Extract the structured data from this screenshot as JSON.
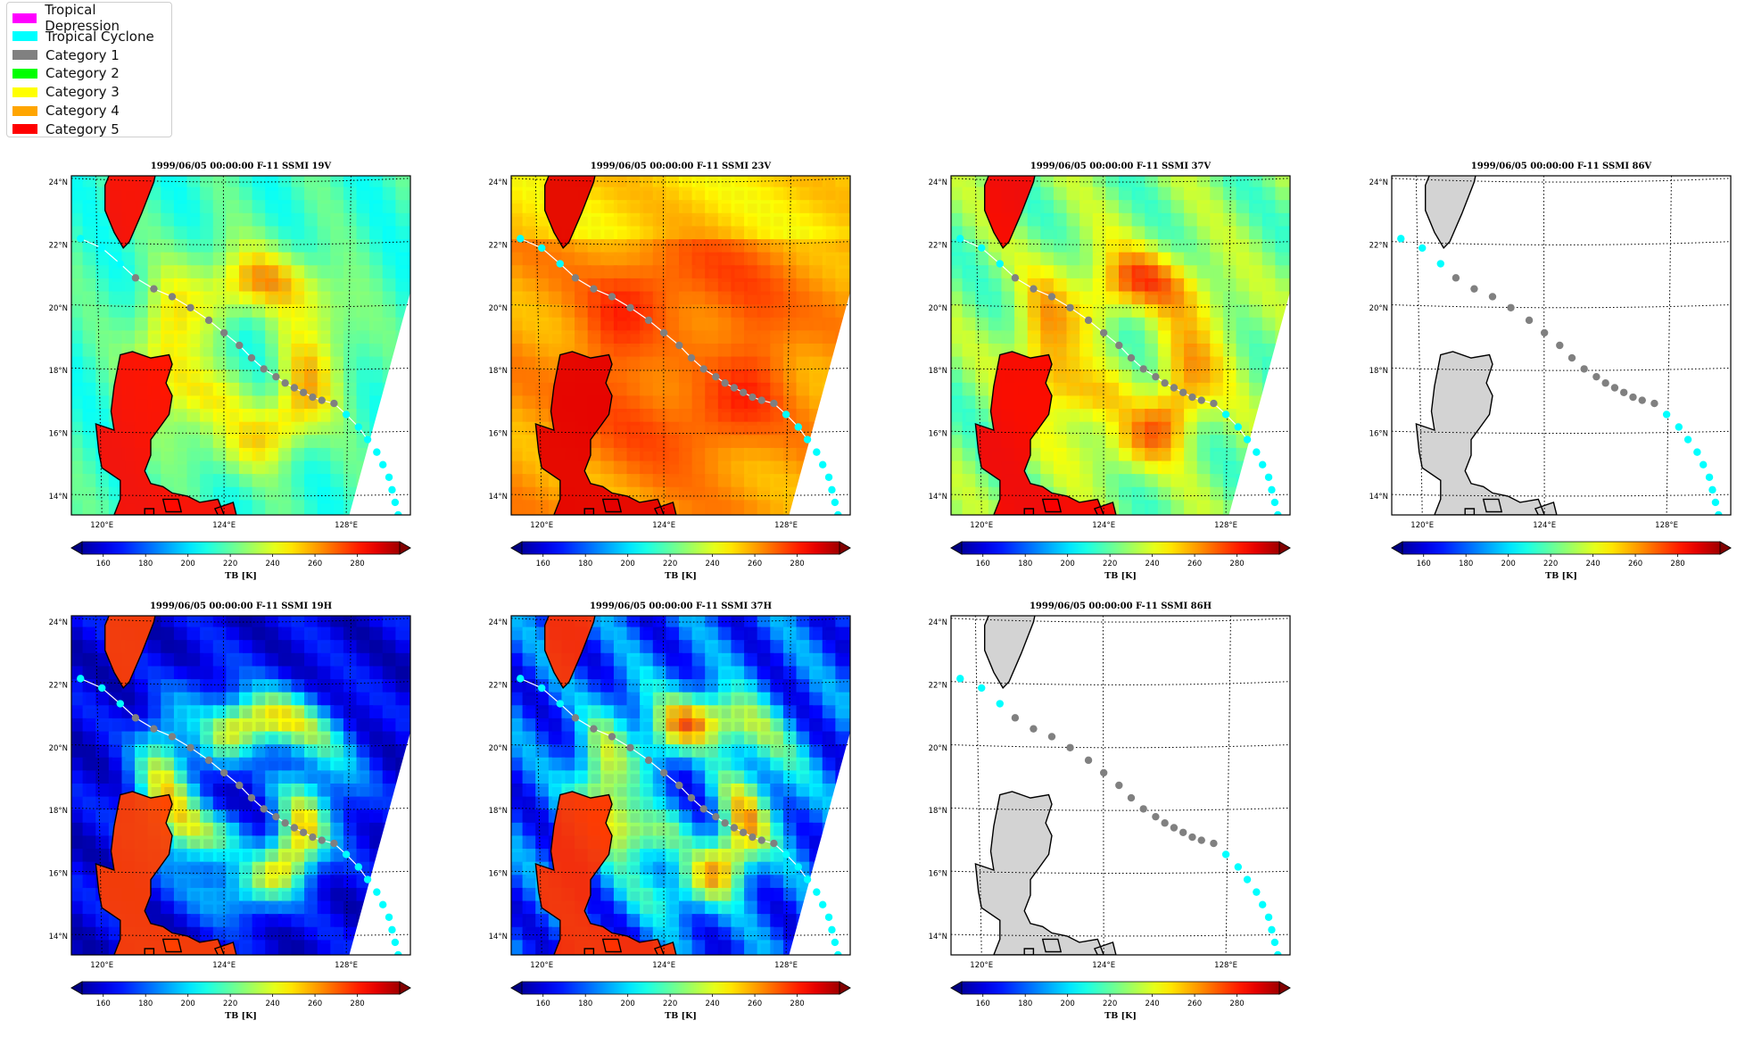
{
  "legend": {
    "items": [
      {
        "label": "Tropical Depression",
        "color": "#ff00ff"
      },
      {
        "label": "Tropical Cyclone",
        "color": "#00ffff"
      },
      {
        "label": "Category 1",
        "color": "#808080"
      },
      {
        "label": "Category 2",
        "color": "#00ff00"
      },
      {
        "label": "Category 3",
        "color": "#ffff00"
      },
      {
        "label": "Category 4",
        "color": "#ffa500"
      },
      {
        "label": "Category 5",
        "color": "#ff0000"
      }
    ]
  },
  "colorbar": {
    "ticks": [
      "160",
      "180",
      "200",
      "220",
      "240",
      "260",
      "280"
    ],
    "label": "TB [K]",
    "colormap": "jet",
    "range": [
      150,
      300
    ]
  },
  "map": {
    "lat_labels": [
      "24°N",
      "22°N",
      "20°N",
      "18°N",
      "16°N",
      "14°N"
    ],
    "lon_labels": [
      "120°E",
      "124°E",
      "128°E"
    ],
    "land_color_no_data": "#d3d3d3"
  },
  "panels": [
    {
      "title": "1999/06/05 00:00:00  F-11 SSMI 19V",
      "channel": "19V",
      "has_data": true
    },
    {
      "title": "1999/06/05 00:00:00  F-11 SSMI 23V",
      "channel": "23V",
      "has_data": true
    },
    {
      "title": "1999/06/05 00:00:00  F-11 SSMI 37V",
      "channel": "37V",
      "has_data": true
    },
    {
      "title": "1999/06/05 00:00:00  F-11 SSMI 86V",
      "channel": "86V",
      "has_data": false
    },
    {
      "title": "1999/06/05 00:00:00  F-11 SSMI 19H",
      "channel": "19H",
      "has_data": true
    },
    {
      "title": "1999/06/05 00:00:00  F-11 SSMI 37H",
      "channel": "37H",
      "has_data": true
    },
    {
      "title": "1999/06/05 00:00:00  F-11 SSMI 86H",
      "channel": "86H",
      "has_data": false
    }
  ],
  "track": [
    {
      "lon": 119.3,
      "lat": 22.2,
      "category": "Tropical Cyclone"
    },
    {
      "lon": 120.0,
      "lat": 21.9,
      "category": "Tropical Cyclone"
    },
    {
      "lon": 120.6,
      "lat": 21.4,
      "category": "Tropical Cyclone"
    },
    {
      "lon": 121.1,
      "lat": 20.95,
      "category": "Category 1"
    },
    {
      "lon": 121.7,
      "lat": 20.6,
      "category": "Category 1"
    },
    {
      "lon": 122.3,
      "lat": 20.35,
      "category": "Category 1"
    },
    {
      "lon": 122.9,
      "lat": 20.0,
      "category": "Category 1"
    },
    {
      "lon": 123.5,
      "lat": 19.6,
      "category": "Category 1"
    },
    {
      "lon": 124.0,
      "lat": 19.2,
      "category": "Category 1"
    },
    {
      "lon": 124.5,
      "lat": 18.8,
      "category": "Category 1"
    },
    {
      "lon": 124.9,
      "lat": 18.4,
      "category": "Category 1"
    },
    {
      "lon": 125.3,
      "lat": 18.05,
      "category": "Category 1"
    },
    {
      "lon": 125.7,
      "lat": 17.8,
      "category": "Category 1"
    },
    {
      "lon": 126.0,
      "lat": 17.6,
      "category": "Category 1"
    },
    {
      "lon": 126.3,
      "lat": 17.45,
      "category": "Category 1"
    },
    {
      "lon": 126.6,
      "lat": 17.3,
      "category": "Category 1"
    },
    {
      "lon": 126.9,
      "lat": 17.15,
      "category": "Category 1"
    },
    {
      "lon": 127.2,
      "lat": 17.05,
      "category": "Category 1"
    },
    {
      "lon": 127.6,
      "lat": 16.95,
      "category": "Category 1"
    },
    {
      "lon": 128.0,
      "lat": 16.6,
      "category": "Tropical Cyclone"
    },
    {
      "lon": 128.4,
      "lat": 16.2,
      "category": "Tropical Cyclone"
    },
    {
      "lon": 128.7,
      "lat": 15.8,
      "category": "Tropical Cyclone"
    },
    {
      "lon": 129.0,
      "lat": 15.4,
      "category": "Tropical Cyclone"
    },
    {
      "lon": 129.2,
      "lat": 15.0,
      "category": "Tropical Cyclone"
    },
    {
      "lon": 129.4,
      "lat": 14.6,
      "category": "Tropical Cyclone"
    },
    {
      "lon": 129.5,
      "lat": 14.2,
      "category": "Tropical Cyclone"
    },
    {
      "lon": 129.6,
      "lat": 13.8,
      "category": "Tropical Cyclone"
    },
    {
      "lon": 129.7,
      "lat": 13.4,
      "category": "Tropical Cyclone"
    }
  ]
}
